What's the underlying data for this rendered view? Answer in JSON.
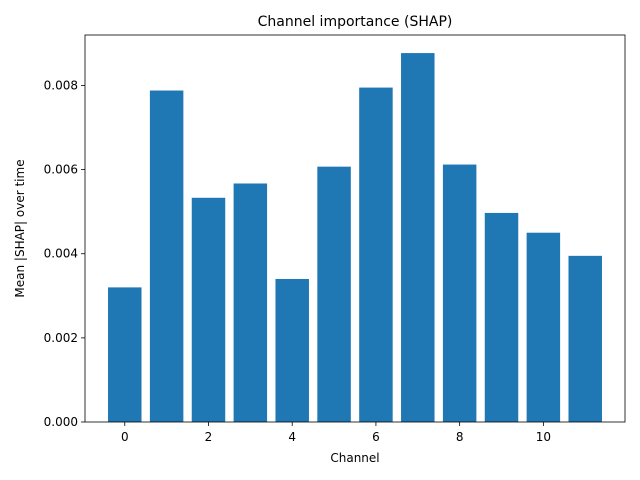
{
  "chart_data": {
    "type": "bar",
    "title": "Channel importance (SHAP)",
    "xlabel": "Channel",
    "ylabel": "Mean |SHAP| over time",
    "categories": [
      0,
      1,
      2,
      3,
      4,
      5,
      6,
      7,
      8,
      9,
      10,
      11
    ],
    "values": [
      0.0032,
      0.00788,
      0.00533,
      0.00567,
      0.0034,
      0.00607,
      0.00795,
      0.00877,
      0.00612,
      0.00497,
      0.0045,
      0.00395
    ],
    "xlim": [
      -0.95,
      11.95
    ],
    "ylim": [
      0,
      0.0092
    ],
    "xticks": [
      0,
      2,
      4,
      6,
      8,
      10
    ],
    "xtick_labels": [
      "0",
      "2",
      "4",
      "6",
      "8",
      "10"
    ],
    "yticks": [
      0,
      0.002,
      0.004,
      0.006,
      0.008
    ],
    "ytick_labels": [
      "0.000",
      "0.002",
      "0.004",
      "0.006",
      "0.008"
    ],
    "bar_color": "#1f77b4",
    "grid": false,
    "legend": "none"
  }
}
